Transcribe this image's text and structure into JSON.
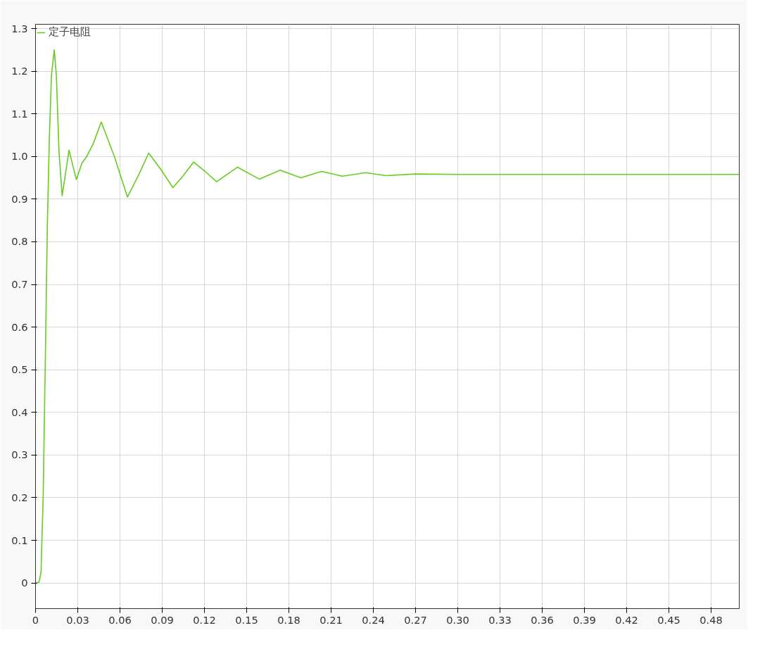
{
  "chart_data": {
    "type": "line",
    "legend": "top left",
    "grid": true,
    "marker": "none",
    "line_style": "solid",
    "xlim": [
      0,
      0.5
    ],
    "ylim": [
      -0.06,
      1.31
    ],
    "xticks": [
      {
        "value": 0,
        "label": "0"
      },
      0.03,
      0.06,
      0.09,
      0.12,
      0.15,
      0.18,
      0.21,
      0.24,
      0.27,
      {
        "value": 0.3,
        "label": "0.30"
      },
      0.33,
      0.36,
      0.39,
      0.42,
      0.45,
      0.48
    ],
    "yticks": [
      0,
      0.1,
      0.2,
      0.3,
      0.4,
      0.5,
      0.6,
      0.7,
      0.8,
      0.9,
      {
        "value": 1.0,
        "label": "1.0"
      },
      1.1,
      1.2,
      1.3
    ],
    "x": [
      0,
      0.0025,
      0.0039,
      0.0054,
      0.0069,
      0.0084,
      0.0098,
      0.0113,
      0.0133,
      0.0148,
      0.0167,
      0.0189,
      0.0213,
      0.0238,
      0.0264,
      0.029,
      0.033,
      0.036,
      0.041,
      0.0467,
      0.056,
      0.0653,
      0.073,
      0.0804,
      0.089,
      0.0976,
      0.105,
      0.1123,
      0.1205,
      0.1287,
      0.1435,
      0.159,
      0.1738,
      0.1885,
      0.2033,
      0.218,
      0.2345,
      0.249,
      0.27,
      0.3,
      0.35,
      0.4,
      0.45,
      0.5
    ],
    "series": [
      {
        "name": "定子电阻",
        "color": "#66cc22",
        "values": [
          0,
          0.002,
          0.025,
          0.2,
          0.51,
          0.84,
          1.04,
          1.19,
          1.25,
          1.19,
          1.01,
          0.908,
          0.96,
          1.015,
          0.98,
          0.946,
          0.985,
          0.998,
          1.03,
          1.081,
          1.0,
          0.905,
          0.955,
          1.008,
          0.97,
          0.927,
          0.955,
          0.987,
          0.965,
          0.941,
          0.975,
          0.947,
          0.968,
          0.95,
          0.965,
          0.954,
          0.962,
          0.955,
          0.959,
          0.958,
          0.958,
          0.958,
          0.958,
          0.958
        ]
      }
    ]
  }
}
